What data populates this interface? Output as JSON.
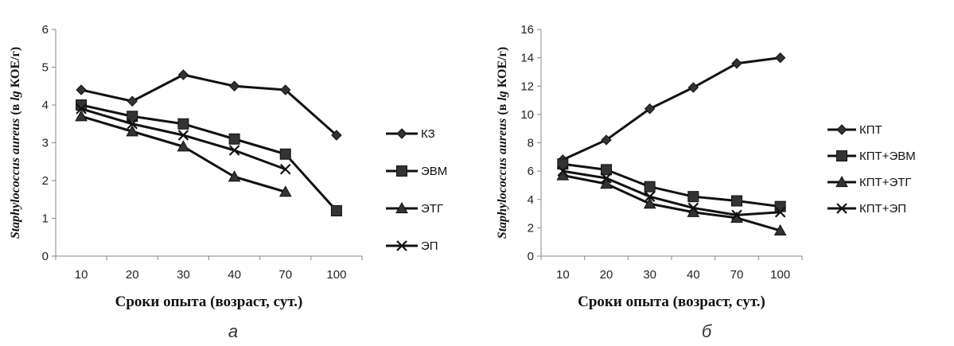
{
  "colors": {
    "series": "#111111",
    "axis": "#888888",
    "text": "#111111"
  },
  "chart_data": [
    {
      "type": "line",
      "panel": "а",
      "categories": [
        "10",
        "20",
        "30",
        "40",
        "70",
        "100"
      ],
      "xlabel": "Сроки опыта (возраст, сут.)",
      "ylabel": {
        "italic_part": "Staphylococcus aureus",
        "pre": " (в ",
        "lg": "lg",
        "post": " КОЕ/г)"
      },
      "ylim": [
        0,
        6
      ],
      "yticks": [
        0,
        1,
        2,
        3,
        4,
        5,
        6
      ],
      "grid": false,
      "legend": "right",
      "series": [
        {
          "name": "КЗ",
          "marker": "diamond",
          "values": [
            4.4,
            4.1,
            4.8,
            4.5,
            4.4,
            3.2
          ]
        },
        {
          "name": "ЭВМ",
          "marker": "square",
          "values": [
            4.0,
            3.7,
            3.5,
            3.1,
            2.7,
            1.2
          ]
        },
        {
          "name": "ЭТГ",
          "marker": "triangle",
          "values": [
            3.7,
            3.3,
            2.9,
            2.1,
            1.7,
            null
          ]
        },
        {
          "name": "ЭП",
          "marker": "x",
          "values": [
            3.9,
            3.5,
            3.2,
            2.8,
            2.3,
            null
          ]
        }
      ]
    },
    {
      "type": "line",
      "panel": "б",
      "categories": [
        "10",
        "20",
        "30",
        "40",
        "70",
        "100"
      ],
      "xlabel": "Сроки опыта (возраст, сут.)",
      "ylabel": {
        "italic_part": "Staphylococcus aureus",
        "pre": " (в ",
        "lg": "lg",
        "post": " КОЕ/г)"
      },
      "ylim": [
        0,
        16
      ],
      "yticks": [
        0,
        2,
        4,
        6,
        8,
        10,
        12,
        14,
        16
      ],
      "grid": false,
      "legend": "right",
      "series": [
        {
          "name": "КПТ",
          "marker": "diamond",
          "values": [
            6.8,
            8.2,
            10.4,
            11.9,
            13.6,
            14.0
          ]
        },
        {
          "name": "КПТ+ЭВМ",
          "marker": "square",
          "values": [
            6.5,
            6.1,
            4.9,
            4.2,
            3.9,
            3.5
          ]
        },
        {
          "name": "КПТ+ЭТГ",
          "marker": "triangle",
          "values": [
            5.7,
            5.1,
            3.7,
            3.1,
            2.7,
            1.8
          ]
        },
        {
          "name": "КПТ+ЭП",
          "marker": "x",
          "values": [
            6.0,
            5.5,
            4.2,
            3.4,
            2.9,
            3.1
          ]
        }
      ]
    }
  ]
}
